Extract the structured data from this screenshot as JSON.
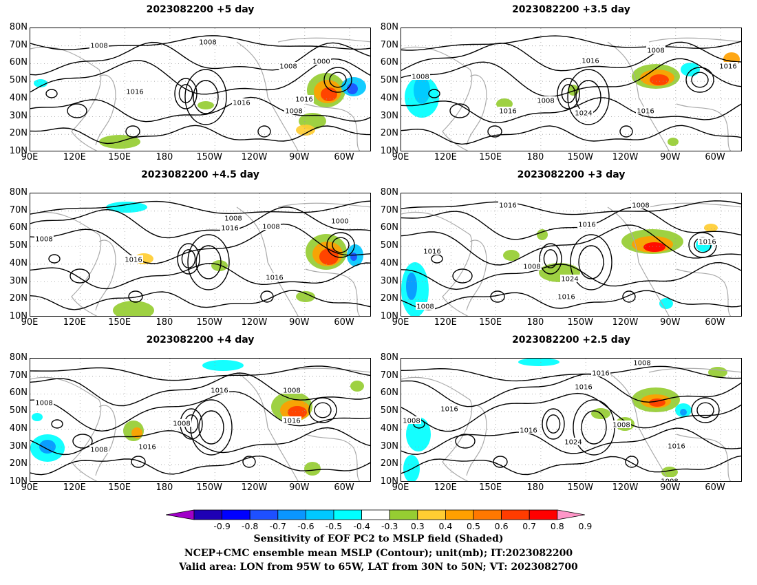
{
  "panels": [
    {
      "title": "2023082200  +5 day",
      "contours": [
        "1008",
        "1008",
        "1008",
        "1000",
        "1016",
        "1016",
        "1016",
        "1008"
      ]
    },
    {
      "title": "2023082200  +3.5 day",
      "contours": [
        "1008",
        "1016",
        "1008",
        "1016",
        "1008",
        "1024",
        "1016",
        "1016"
      ]
    },
    {
      "title": "2023082200  +4.5 day",
      "contours": [
        "1008",
        "1008",
        "1016",
        "1008",
        "1000",
        "1016",
        "1016"
      ]
    },
    {
      "title": "2023082200  +3 day",
      "contours": [
        "1016",
        "1008",
        "1016",
        "1016",
        "1016",
        "1008",
        "1024",
        "1016",
        "1008"
      ]
    },
    {
      "title": "2023082200  +4 day",
      "contours": [
        "1008",
        "1016",
        "1008",
        "1008",
        "1016",
        "1008",
        "1016"
      ]
    },
    {
      "title": "2023082200  +2.5 day",
      "contours": [
        "1008",
        "1016",
        "1016",
        "1016",
        "1008",
        "1008",
        "1016",
        "1024",
        "1016",
        "1008"
      ]
    }
  ],
  "y_labels": [
    "80N",
    "70N",
    "60N",
    "50N",
    "40N",
    "30N",
    "20N",
    "10N"
  ],
  "x_labels": [
    "90E",
    "120E",
    "150E",
    "180",
    "150W",
    "120W",
    "90W",
    "60W"
  ],
  "colorbar": {
    "ticks": [
      "-0.9",
      "-0.8",
      "-0.7",
      "-0.6",
      "-0.5",
      "-0.4",
      "-0.3",
      "0.3",
      "0.4",
      "0.5",
      "0.6",
      "0.7",
      "0.8",
      "0.9"
    ],
    "colors": [
      "#a000c8",
      "#1e00b4",
      "#0000ff",
      "#1e50ff",
      "#0a96ff",
      "#00c8ff",
      "#00ffff",
      "#ffffff",
      "#96cd32",
      "#ffcd32",
      "#ffa000",
      "#ff7800",
      "#ff3c00",
      "#ff0000",
      "#ff96c8"
    ]
  },
  "caption": {
    "line1": "Sensitivity of EOF PC2 to MSLP field (Shaded)",
    "line2": "NCEP+CMC ensemble mean MSLP (Contour); unit(mb); IT:2023082200",
    "line3": "Valid area: LON from 95W to 65W, LAT from 30N to 50N; VT: 2023082700"
  }
}
